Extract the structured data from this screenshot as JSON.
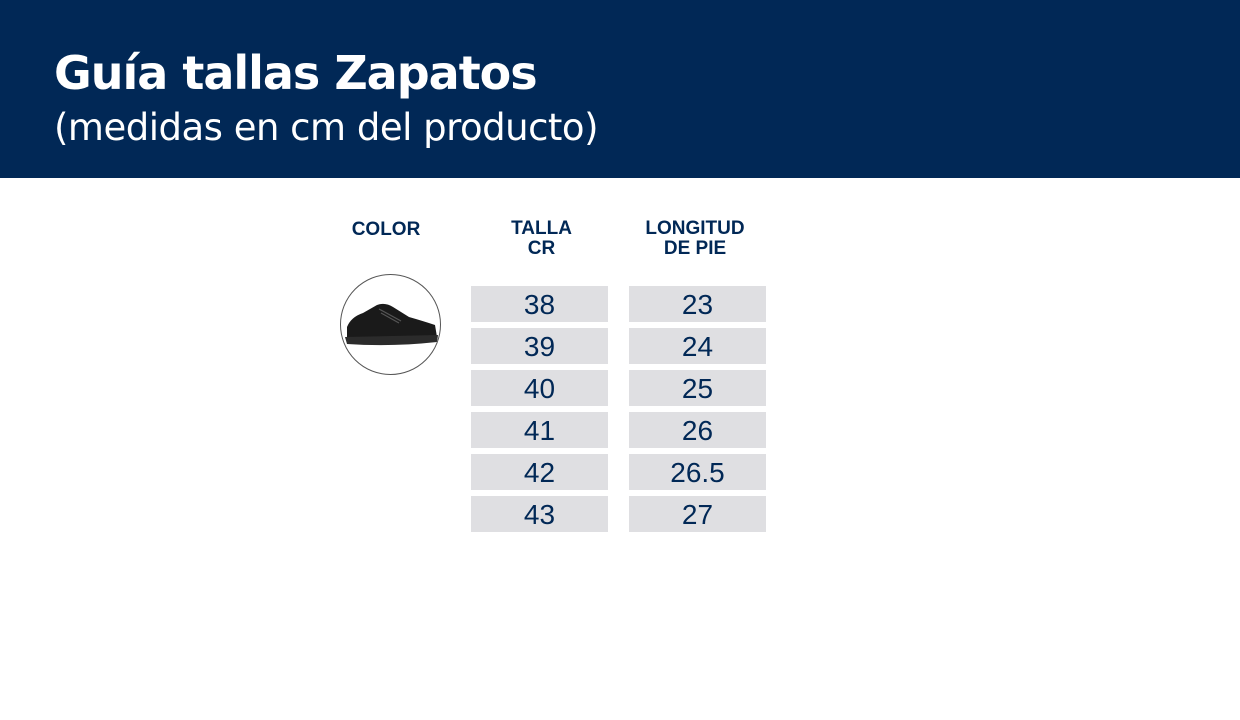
{
  "header": {
    "title": "Guía tallas Zapatos",
    "subtitle": "(medidas en cm del producto)"
  },
  "table": {
    "headers": {
      "color": "COLOR",
      "talla_1": "TALLA",
      "talla_2": "CR",
      "longitud_1": "LONGITUD",
      "longitud_2": "DE PIE"
    },
    "product_image": "black-sneaker",
    "rows": [
      {
        "talla": "38",
        "longitud": "23"
      },
      {
        "talla": "39",
        "longitud": "24"
      },
      {
        "talla": "40",
        "longitud": "25"
      },
      {
        "talla": "41",
        "longitud": "26"
      },
      {
        "talla": "42",
        "longitud": "26.5"
      },
      {
        "talla": "43",
        "longitud": "27"
      }
    ]
  },
  "colors": {
    "brand": "#012856",
    "cell": "#dfdfe2"
  }
}
